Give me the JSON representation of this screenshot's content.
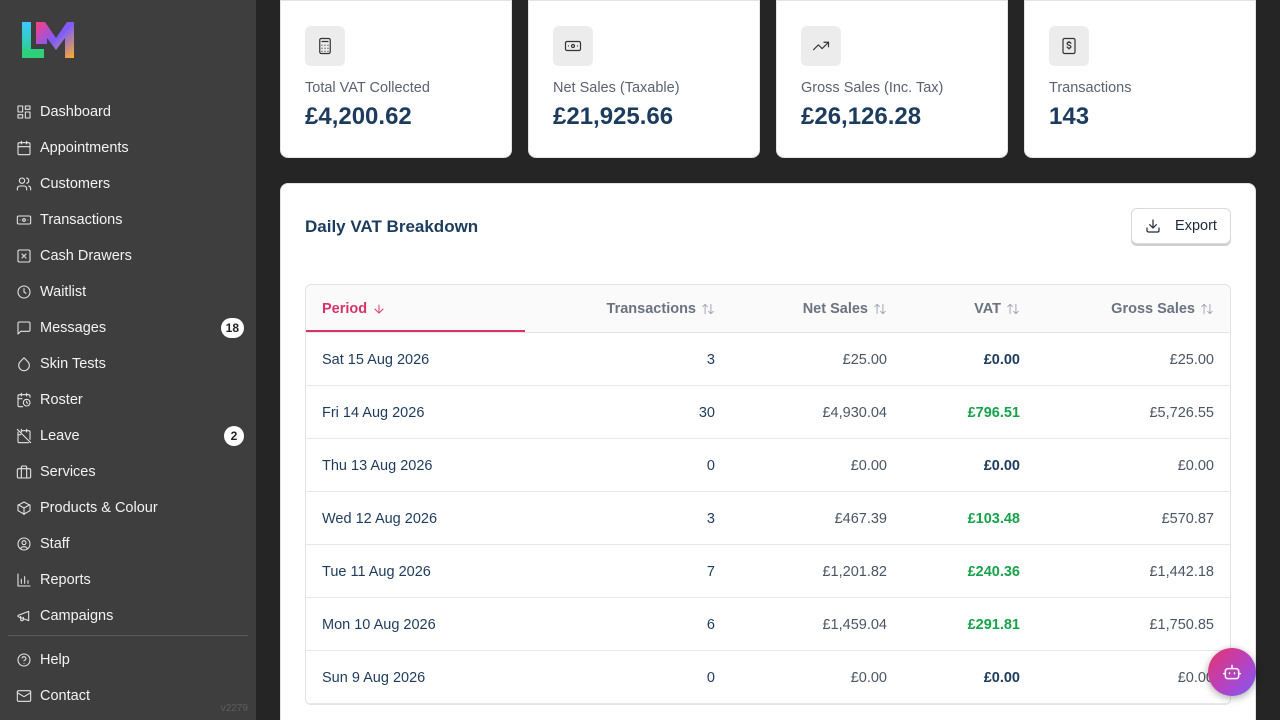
{
  "sidebar": {
    "items": [
      {
        "label": "Dashboard",
        "icon": "grid-icon"
      },
      {
        "label": "Appointments",
        "icon": "calendar-icon"
      },
      {
        "label": "Customers",
        "icon": "users-icon"
      },
      {
        "label": "Transactions",
        "icon": "banknote-icon"
      },
      {
        "label": "Cash Drawers",
        "icon": "square-x-icon"
      },
      {
        "label": "Waitlist",
        "icon": "clock-icon"
      },
      {
        "label": "Messages",
        "icon": "message-icon",
        "badge": "18"
      },
      {
        "label": "Skin Tests",
        "icon": "droplet-icon"
      },
      {
        "label": "Roster",
        "icon": "calendar-clock-icon"
      },
      {
        "label": "Leave",
        "icon": "calendar-off-icon",
        "badge": "2"
      },
      {
        "label": "Services",
        "icon": "briefcase-icon"
      },
      {
        "label": "Products & Colour",
        "icon": "package-icon"
      },
      {
        "label": "Staff",
        "icon": "user-circle-icon"
      },
      {
        "label": "Reports",
        "icon": "bar-chart-icon"
      },
      {
        "label": "Campaigns",
        "icon": "megaphone-icon"
      }
    ],
    "bottom": [
      {
        "label": "Help",
        "icon": "help-circle-icon"
      },
      {
        "label": "Contact",
        "icon": "mail-icon"
      }
    ],
    "version": "v2279"
  },
  "stats": [
    {
      "label": "Total VAT Collected",
      "value": "£4,200.62",
      "icon": "calculator-icon"
    },
    {
      "label": "Net Sales (Taxable)",
      "value": "£21,925.66",
      "icon": "banknote-icon"
    },
    {
      "label": "Gross Sales (Inc. Tax)",
      "value": "£26,126.28",
      "icon": "trending-up-icon"
    },
    {
      "label": "Transactions",
      "value": "143",
      "icon": "receipt-icon"
    }
  ],
  "breakdown": {
    "title": "Daily VAT Breakdown",
    "export_label": "Export",
    "columns": {
      "period": "Period",
      "transactions": "Transactions",
      "net": "Net Sales",
      "vat": "VAT",
      "gross": "Gross Sales"
    },
    "rows": [
      {
        "period": "Sat 15 Aug 2026",
        "transactions": "3",
        "net": "£25.00",
        "vat": "£0.00",
        "gross": "£25.00"
      },
      {
        "period": "Fri 14 Aug 2026",
        "transactions": "30",
        "net": "£4,930.04",
        "vat": "£796.51",
        "gross": "£5,726.55"
      },
      {
        "period": "Thu 13 Aug 2026",
        "transactions": "0",
        "net": "£0.00",
        "vat": "£0.00",
        "gross": "£0.00"
      },
      {
        "period": "Wed 12 Aug 2026",
        "transactions": "3",
        "net": "£467.39",
        "vat": "£103.48",
        "gross": "£570.87"
      },
      {
        "period": "Tue 11 Aug 2026",
        "transactions": "7",
        "net": "£1,201.82",
        "vat": "£240.36",
        "gross": "£1,442.18"
      },
      {
        "period": "Mon 10 Aug 2026",
        "transactions": "6",
        "net": "£1,459.04",
        "vat": "£291.81",
        "gross": "£1,750.85"
      },
      {
        "period": "Sun 9 Aug 2026",
        "transactions": "0",
        "net": "£0.00",
        "vat": "£0.00",
        "gross": "£0.00"
      }
    ]
  },
  "colors": {
    "accent": "#d6336c",
    "positive": "#16a34a",
    "heading": "#1d3b5c",
    "sidebar": "#3e3e3e"
  }
}
